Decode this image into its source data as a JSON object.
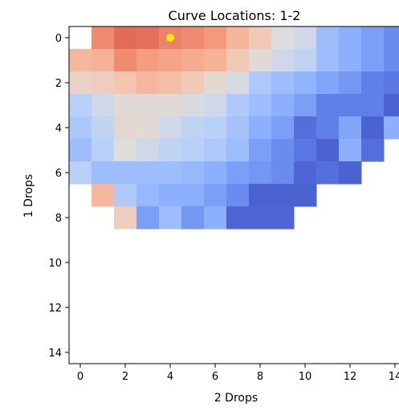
{
  "chart_data": {
    "type": "heatmap",
    "title": "Curve Locations: 1-2",
    "xlabel": "2 Drops",
    "ylabel": "1 Drops",
    "x_ticks": [
      "0",
      "2",
      "4",
      "6",
      "8",
      "10",
      "12",
      "14"
    ],
    "y_ticks": [
      "0",
      "2",
      "4",
      "6",
      "8",
      "10",
      "12",
      "14"
    ],
    "x_range": [
      0,
      14
    ],
    "y_range": [
      0,
      14
    ],
    "y_axis_direction": "top-to-bottom",
    "grid": false,
    "colormap": "coolwarm",
    "color_scale": [
      0,
      1
    ],
    "cells": [
      [
        null,
        0.78,
        0.85,
        0.84,
        0.8,
        0.78,
        0.75,
        0.67,
        0.6,
        0.5,
        0.45,
        0.3,
        0.25,
        0.2,
        0.15
      ],
      [
        0.66,
        0.68,
        0.78,
        0.74,
        0.72,
        0.7,
        0.68,
        0.6,
        0.52,
        0.45,
        0.4,
        0.3,
        0.25,
        0.2,
        0.15
      ],
      [
        0.56,
        0.58,
        0.62,
        0.66,
        0.64,
        0.6,
        0.53,
        0.48,
        0.35,
        0.3,
        0.26,
        0.22,
        0.18,
        0.12,
        0.1
      ],
      [
        0.38,
        0.45,
        0.52,
        0.52,
        0.52,
        0.48,
        0.45,
        0.35,
        0.3,
        0.25,
        0.2,
        0.12,
        0.12,
        0.12,
        0.05
      ],
      [
        0.34,
        0.4,
        0.53,
        0.52,
        0.45,
        0.4,
        0.38,
        0.32,
        0.25,
        0.2,
        0.08,
        0.12,
        0.22,
        0.05,
        0.25
      ],
      [
        0.3,
        0.38,
        0.5,
        0.45,
        0.4,
        0.38,
        0.35,
        0.3,
        0.2,
        0.15,
        0.1,
        0.05,
        0.25,
        0.08,
        null
      ],
      [
        0.38,
        0.3,
        0.3,
        0.3,
        0.3,
        0.28,
        0.25,
        0.2,
        0.18,
        0.15,
        0.06,
        0.08,
        0.05,
        null,
        null
      ],
      [
        null,
        0.66,
        0.35,
        0.28,
        0.25,
        0.25,
        0.2,
        0.15,
        0.05,
        0.05,
        0.05,
        null,
        null,
        null,
        null
      ],
      [
        null,
        null,
        0.58,
        0.2,
        0.3,
        0.18,
        0.25,
        0.06,
        0.06,
        0.06,
        null,
        null,
        null,
        null,
        null
      ],
      [
        null,
        null,
        null,
        null,
        null,
        null,
        null,
        null,
        null,
        null,
        null,
        null,
        null,
        null,
        null
      ],
      [
        null,
        null,
        null,
        null,
        null,
        null,
        null,
        null,
        null,
        null,
        null,
        null,
        null,
        null,
        null
      ],
      [
        null,
        null,
        null,
        null,
        null,
        null,
        null,
        null,
        null,
        null,
        null,
        null,
        null,
        null,
        null
      ],
      [
        null,
        null,
        null,
        null,
        null,
        null,
        null,
        null,
        null,
        null,
        null,
        null,
        null,
        null,
        null
      ],
      [
        null,
        null,
        null,
        null,
        null,
        null,
        null,
        null,
        null,
        null,
        null,
        null,
        null,
        null,
        null
      ],
      [
        null,
        null,
        null,
        null,
        null,
        null,
        null,
        null,
        null,
        null,
        null,
        null,
        null,
        null,
        null
      ]
    ],
    "markers": [
      {
        "x": 4,
        "y": 0,
        "color": "#ffee00"
      }
    ]
  }
}
